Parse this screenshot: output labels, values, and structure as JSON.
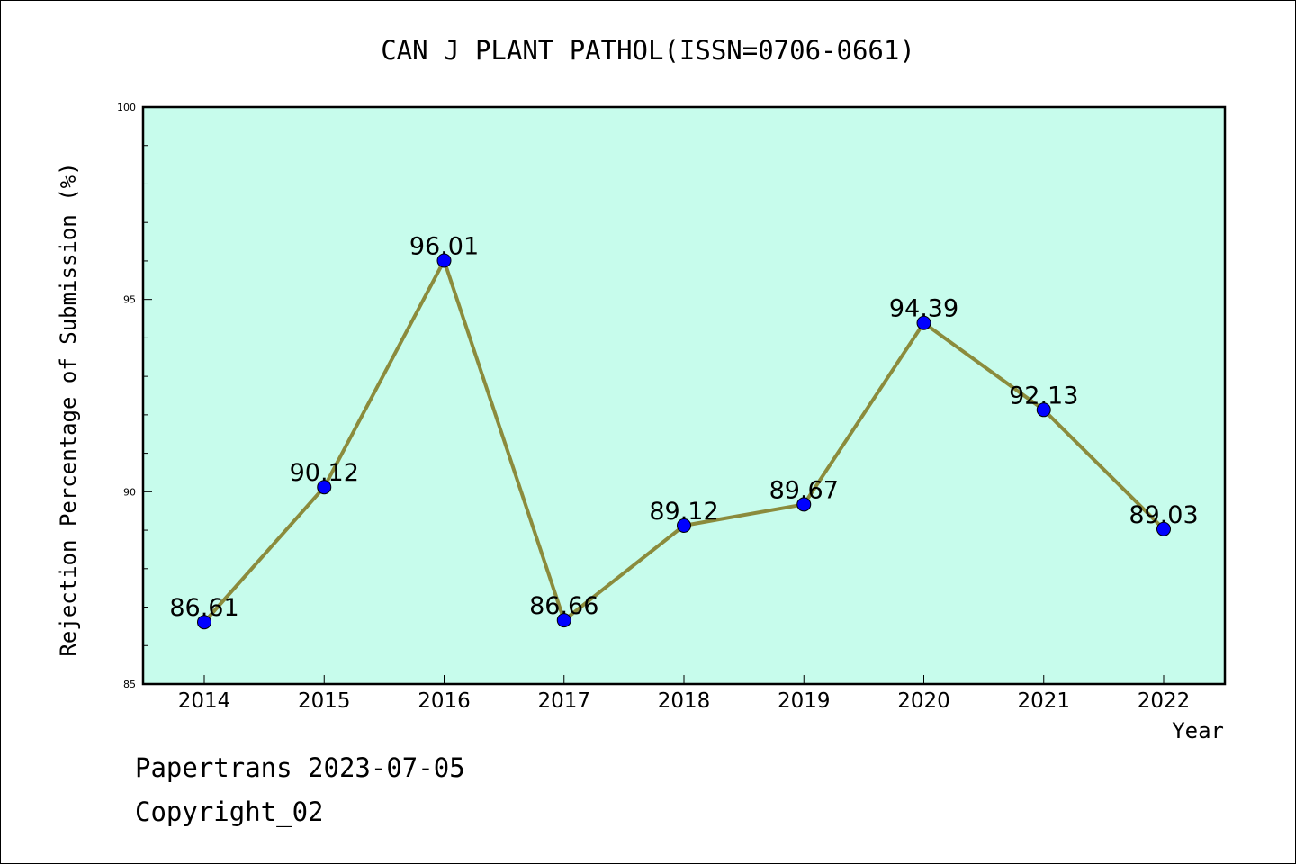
{
  "chart_data": {
    "type": "line",
    "title": "CAN J PLANT PATHOL(ISSN=0706-0661)",
    "xlabel": "Year",
    "ylabel": "Rejection Percentage of Submission (%)",
    "categories": [
      "2014",
      "2015",
      "2016",
      "2017",
      "2018",
      "2019",
      "2020",
      "2021",
      "2022"
    ],
    "series": [
      {
        "values": [
          86.61,
          90.12,
          96.01,
          86.66,
          89.12,
          89.67,
          94.39,
          92.13,
          89.03
        ],
        "labels": [
          "86.61",
          "90.12",
          "96.01",
          "86.66",
          "89.12",
          "89.67",
          "94.39",
          "92.13",
          "89.03"
        ]
      }
    ],
    "ylim": [
      85,
      100
    ],
    "yticks": [
      85,
      90,
      95,
      100
    ],
    "ytick_labels": [
      "85",
      "90",
      "95",
      "100"
    ],
    "grid": false,
    "colors": {
      "plot_background": "#c7fcec",
      "line": "#8b8b3c",
      "marker": "#0000ff"
    }
  },
  "footer": {
    "line1": "Papertrans 2023-07-05",
    "line2": "Copyright_02"
  }
}
